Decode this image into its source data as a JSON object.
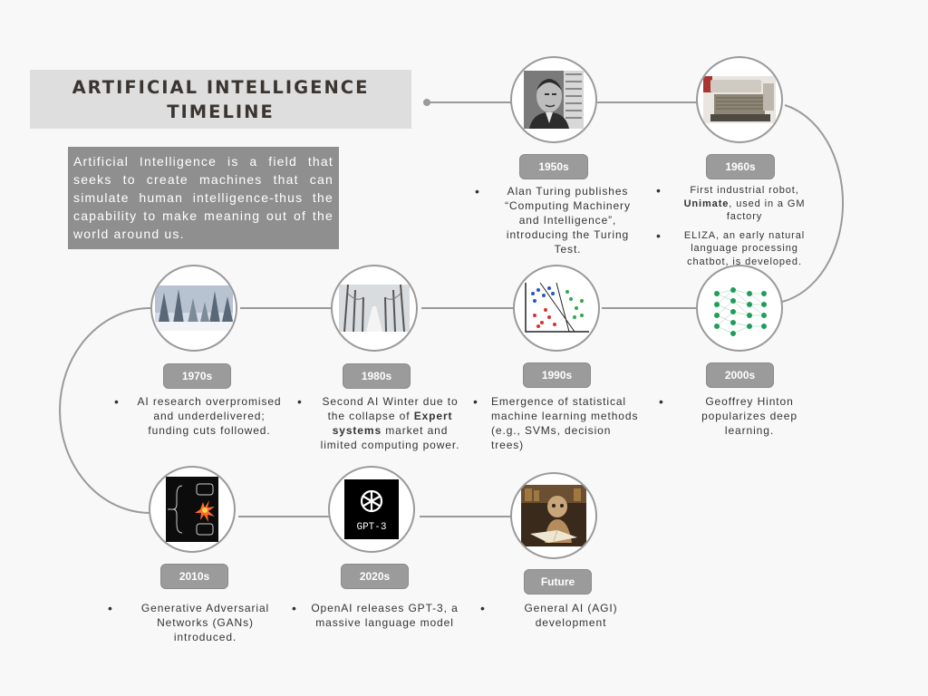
{
  "title": "ARTIFICIAL INTELLIGENCE TIMELINE",
  "intro": "Artificial Intelligence is a field that seeks to create machines that can simulate human intelligence-thus the capability to make meaning out of the world around us.",
  "milestones": [
    {
      "label": "1950s",
      "items": [
        {
          "text": "Alan Turing publishes “Computing Machinery and Intelligence”, introducing the Turing Test."
        }
      ]
    },
    {
      "label": "1960s",
      "items": [
        {
          "pre": "First industrial robot, ",
          "bold": "Unimate",
          "post": ", used in a GM factory"
        },
        {
          "text": "ELIZA, an early natural language processing chatbot, is developed."
        }
      ]
    },
    {
      "label": "1970s",
      "items": [
        {
          "text": "AI research overpromised and underdelivered; funding cuts followed."
        }
      ]
    },
    {
      "label": "1980s",
      "items": [
        {
          "pre": "Second AI Winter due to the collapse of ",
          "bold": "Expert systems",
          "post": " market and limited computing power."
        }
      ]
    },
    {
      "label": "1990s",
      "items": [
        {
          "text": "Emergence of statistical machine learning methods (e.g., SVMs, decision trees)"
        }
      ]
    },
    {
      "label": "2000s",
      "items": [
        {
          "text": "Geoffrey Hinton popularizes deep learning."
        }
      ]
    },
    {
      "label": "2010s",
      "items": [
        {
          "text": "Generative Adversarial Networks (GANs) introduced."
        }
      ]
    },
    {
      "label": "2020s",
      "items": [
        {
          "text": "OpenAI releases GPT-3, a massive language model"
        }
      ]
    },
    {
      "label": "Future",
      "items": [
        {
          "text": "General AI (AGI) development"
        }
      ]
    }
  ],
  "gpt_logo_text": "GPT-3",
  "colors": {
    "pill": "#9b9b9b",
    "title_bg": "#dedede",
    "intro_bg": "#8f8f8f",
    "line": "#9a9a9a",
    "nn_node": "#1e9e5a"
  }
}
